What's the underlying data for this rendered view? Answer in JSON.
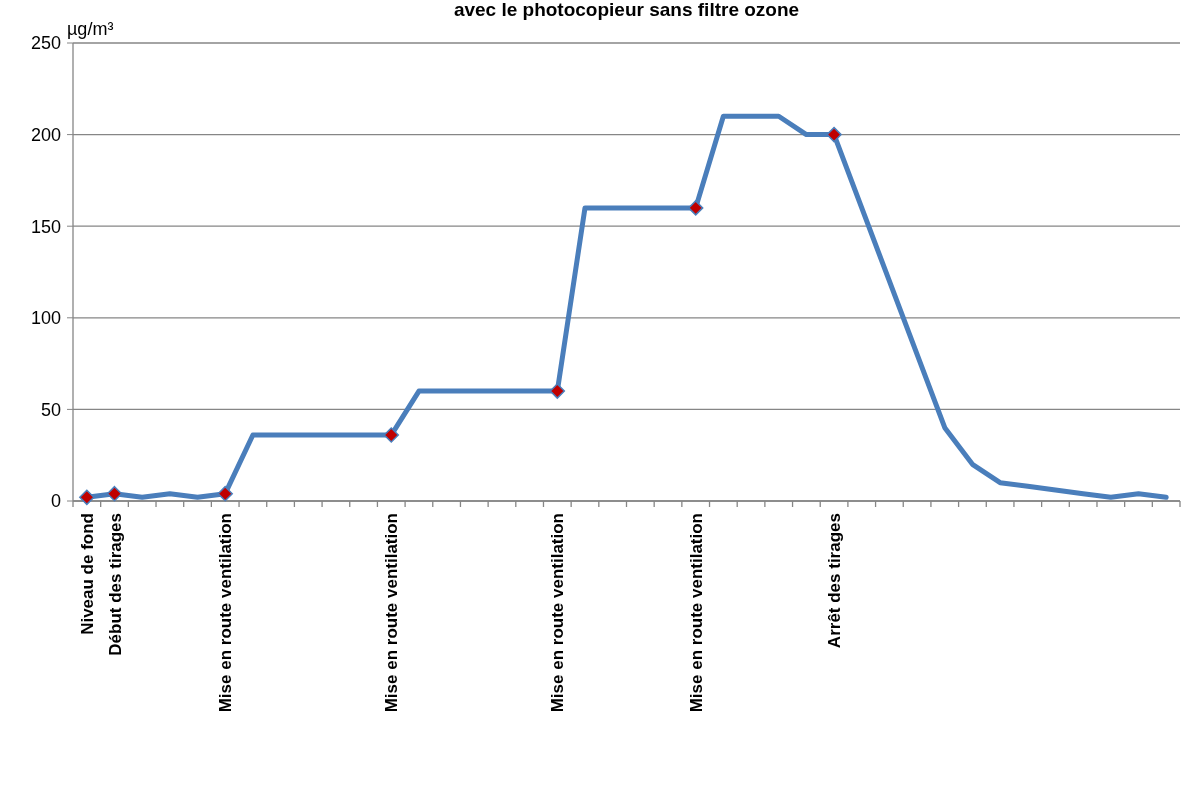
{
  "chart_data": {
    "type": "line",
    "title": "avec le photocopieur sans filtre ozone",
    "ylabel": "µg/m³",
    "categories": [
      "Niveau de fond",
      "Début des tirages",
      null,
      null,
      null,
      "Mise en route ventilation",
      null,
      null,
      null,
      null,
      null,
      "Mise en route ventilation",
      null,
      null,
      null,
      null,
      null,
      "Mise en route ventilation",
      null,
      null,
      null,
      null,
      "Mise en route ventilation",
      null,
      null,
      null,
      null,
      "Arrêt des tirages",
      null,
      null,
      null,
      null,
      null,
      null,
      null,
      null,
      null,
      null,
      null,
      null
    ],
    "series": [
      {
        "type": "line",
        "color": "#4a7ebb",
        "values": [
          2,
          4,
          2,
          4,
          2,
          4,
          36,
          36,
          36,
          36,
          36,
          36,
          60,
          60,
          60,
          60,
          60,
          60,
          160,
          160,
          160,
          160,
          160,
          210,
          210,
          210,
          200,
          200,
          160,
          120,
          80,
          40,
          20,
          10,
          8,
          6,
          4,
          2,
          4,
          2
        ]
      },
      {
        "type": "scatter",
        "color": "#c00000",
        "marker": "diamond",
        "values": [
          2,
          4,
          null,
          null,
          null,
          4,
          null,
          null,
          null,
          null,
          null,
          36,
          null,
          null,
          null,
          null,
          null,
          60,
          null,
          null,
          null,
          null,
          160,
          null,
          null,
          null,
          null,
          200,
          null,
          null,
          null,
          null,
          null,
          null,
          null,
          null,
          null,
          null,
          null,
          null
        ]
      }
    ],
    "ylim": [
      0,
      250
    ],
    "yticks": [
      0,
      50,
      100,
      150,
      200,
      250
    ],
    "grid": "y"
  }
}
